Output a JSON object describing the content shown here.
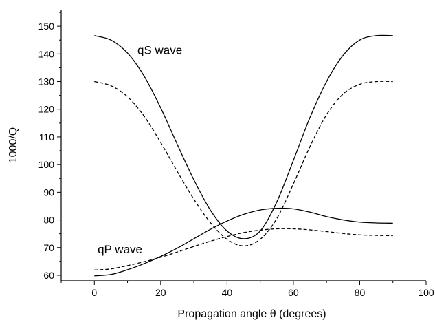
{
  "chart_data": {
    "type": "line",
    "xlabel": "Propagation angle θ (degrees)",
    "ylabel": "1000/Q",
    "xlim": [
      -10,
      100
    ],
    "ylim": [
      58,
      156
    ],
    "xticks": [
      0,
      20,
      40,
      60,
      80,
      100
    ],
    "yticks": [
      60,
      70,
      80,
      90,
      100,
      110,
      120,
      130,
      140,
      150
    ],
    "grid": false,
    "line_color": "#000000",
    "annotations": [
      {
        "text": "qS wave",
        "x": 13,
        "y": 140
      },
      {
        "text": "qP wave",
        "x": 1,
        "y": 68
      }
    ],
    "series": [
      {
        "style": "solid",
        "x": [
          0,
          5,
          10,
          15,
          20,
          25,
          30,
          35,
          40,
          45,
          50,
          55,
          60,
          65,
          70,
          75,
          80,
          85,
          90
        ],
        "values": [
          146.6,
          145.0,
          140.3,
          132.0,
          120.5,
          107.3,
          94.5,
          83.5,
          76.0,
          73.2,
          76.0,
          86.5,
          101.5,
          117.0,
          130.0,
          139.5,
          145.0,
          146.6,
          146.6
        ]
      },
      {
        "style": "dashed",
        "x": [
          0,
          5,
          10,
          15,
          20,
          25,
          30,
          35,
          40,
          45,
          50,
          55,
          60,
          65,
          70,
          75,
          80,
          85,
          90
        ],
        "values": [
          130.0,
          128.5,
          124.5,
          117.5,
          108.0,
          97.5,
          87.5,
          79.0,
          73.0,
          70.6,
          73.0,
          80.5,
          93.0,
          106.5,
          118.0,
          125.5,
          129.0,
          130.0,
          130.0
        ]
      },
      {
        "style": "solid",
        "x": [
          0,
          5,
          10,
          15,
          20,
          25,
          30,
          35,
          40,
          45,
          50,
          55,
          60,
          65,
          70,
          75,
          80,
          85,
          90
        ],
        "values": [
          59.8,
          60.3,
          62.0,
          64.2,
          66.8,
          69.8,
          73.2,
          76.6,
          79.6,
          82.0,
          83.6,
          84.2,
          84.0,
          82.8,
          81.2,
          80.0,
          79.2,
          78.9,
          78.8
        ]
      },
      {
        "style": "dashed",
        "x": [
          0,
          5,
          10,
          15,
          20,
          25,
          30,
          35,
          40,
          45,
          50,
          55,
          60,
          65,
          70,
          75,
          80,
          85,
          90
        ],
        "values": [
          61.9,
          62.3,
          63.5,
          64.9,
          66.5,
          68.4,
          70.4,
          72.3,
          74.0,
          75.4,
          76.3,
          76.8,
          76.8,
          76.4,
          75.8,
          75.1,
          74.6,
          74.4,
          74.3
        ]
      }
    ]
  }
}
